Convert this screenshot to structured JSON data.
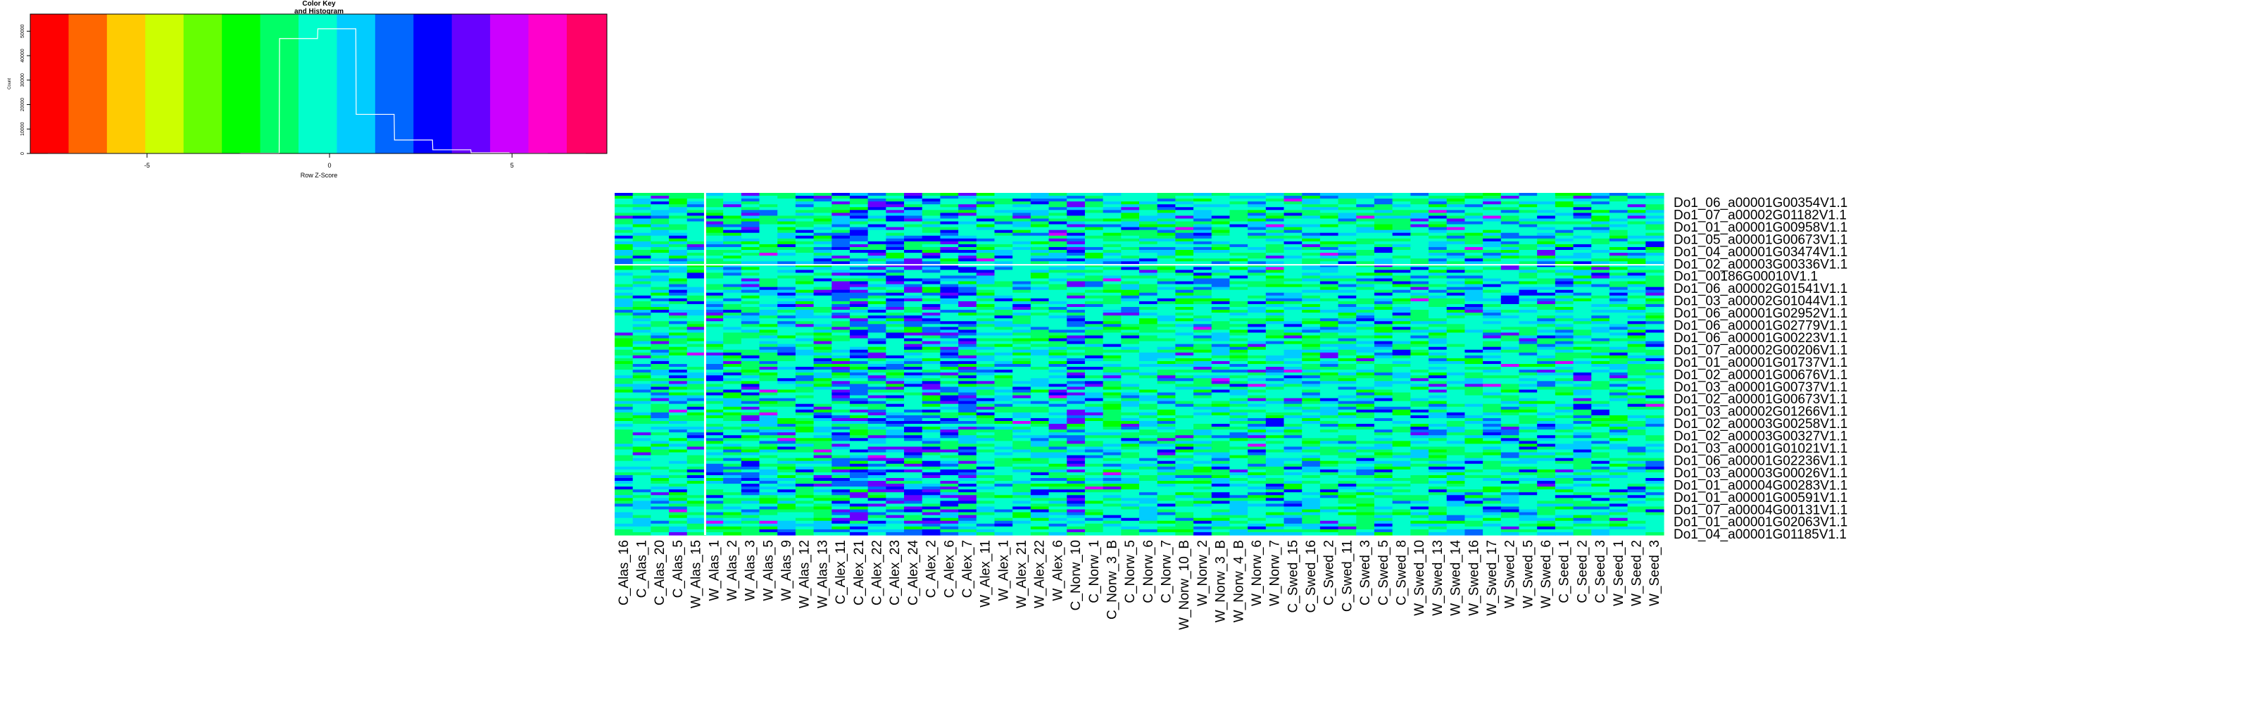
{
  "colors": {
    "palette": [
      "#FF0000",
      "#FF6600",
      "#FFCC00",
      "#CCFF00",
      "#66FF00",
      "#00FF00",
      "#00FF66",
      "#00FFCC",
      "#00CCFF",
      "#0066FF",
      "#0000FF",
      "#6600FF",
      "#CC00FF",
      "#FF00CC",
      "#FF0066"
    ],
    "histogram_line": "#ffffff",
    "separator": "#ffffff",
    "text": "#000000"
  },
  "chart_data": [
    {
      "type": "histogram",
      "title": "Color Key\nand Histogram",
      "xlabel": "Row Z-Score",
      "ylabel": "Count",
      "xlim": [
        -8.2,
        7.6
      ],
      "ylim": [
        0,
        57000
      ],
      "x_ticks": [
        -5,
        0,
        5
      ],
      "y_ticks": [
        0,
        10000,
        20000,
        30000,
        40000,
        50000
      ],
      "color_breaks": [
        -8.2,
        -7.15,
        -6.1,
        -5.05,
        -4.0,
        -2.95,
        -1.9,
        -0.85,
        0.2,
        1.25,
        2.3,
        3.35,
        4.4,
        5.45,
        6.5,
        7.6
      ],
      "histogram_x": [
        -7.2,
        -6.1,
        -5.1,
        -4.0,
        -3.0,
        -1.9,
        -0.85,
        0.2,
        1.25,
        2.3,
        3.35,
        4.4,
        5.45,
        6.5
      ],
      "histogram_counts": [
        0,
        0,
        0,
        0,
        0,
        100,
        47000,
        51000,
        16000,
        5500,
        1500,
        300,
        50,
        0
      ]
    },
    {
      "type": "heatmap",
      "color_scale": "row z-score, red (low) to magenta/red (high) rainbow",
      "column_split_after": "W_Alas_15",
      "row_split_after_label": "Do1_02_a00003G00336V1.1",
      "columns": [
        "C_Alas_16",
        "C_Alas_1",
        "C_Alas_20",
        "C_Alas_5",
        "W_Alas_15",
        "W_Alas_1",
        "W_Alas_2",
        "W_Alas_3",
        "W_Alas_5",
        "W_Alas_9",
        "W_Alas_12",
        "W_Alas_13",
        "C_Alex_11",
        "C_Alex_21",
        "C_Alex_22",
        "C_Alex_23",
        "C_Alex_24",
        "C_Alex_2",
        "C_Alex_6",
        "C_Alex_7",
        "W_Alex_11",
        "W_Alex_1",
        "W_Alex_21",
        "W_Alex_22",
        "W_Alex_6",
        "C_Norw_10",
        "C_Norw_1",
        "C_Norw_3_B",
        "C_Norw_5",
        "C_Norw_6",
        "C_Norw_7",
        "W_Norw_10_B",
        "W_Norw_2",
        "W_Norw_3_B",
        "W_Norw_4_B",
        "W_Norw_6",
        "W_Norw_7",
        "C_Swed_15",
        "C_Swed_16",
        "C_Swed_2",
        "C_Swed_11",
        "C_Swed_3",
        "C_Swed_5",
        "C_Swed_8",
        "W_Swed_10",
        "W_Swed_13",
        "W_Swed_14",
        "W_Swed_16",
        "W_Swed_17",
        "W_Swed_2",
        "W_Swed_5",
        "W_Swed_6",
        "C_Seed_1",
        "C_Seed_2",
        "C_Seed_3",
        "W_Seed_1",
        "W_Seed_2",
        "W_Seed_3"
      ],
      "row_labels": [
        "Do1_06_a00001G00354V1.1",
        "Do1_07_a00002G01182V1.1",
        "Do1_01_a00001G00958V1.1",
        "Do1_05_a00001G00673V1.1",
        "Do1_04_a00001G03474V1.1",
        "Do1_02_a00003G00336V1.1",
        "Do1_00186G00010V1.1",
        "Do1_06_a00002G01541V1.1",
        "Do1_03_a00002G01044V1.1",
        "Do1_06_a00001G02952V1.1",
        "Do1_06_a00001G02779V1.1",
        "Do1_06_a00001G00223V1.1",
        "Do1_07_a00002G00206V1.1",
        "Do1_01_a00001G01737V1.1",
        "Do1_02_a00001G00676V1.1",
        "Do1_03_a00001G00737V1.1",
        "Do1_02_a00001G00673V1.1",
        "Do1_03_a00002G01266V1.1",
        "Do1_02_a00003G00258V1.1",
        "Do1_02_a00003G00327V1.1",
        "Do1_03_a00001G01021V1.1",
        "Do1_06_a00001G02236V1.1",
        "Do1_03_a00003G00026V1.1",
        "Do1_01_a00004G00283V1.1",
        "Do1_01_a00001G00591V1.1",
        "Do1_07_a00004G00131V1.1",
        "Do1_01_a00001G02063V1.1",
        "Do1_04_a00001G01185V1.1"
      ]
    }
  ]
}
